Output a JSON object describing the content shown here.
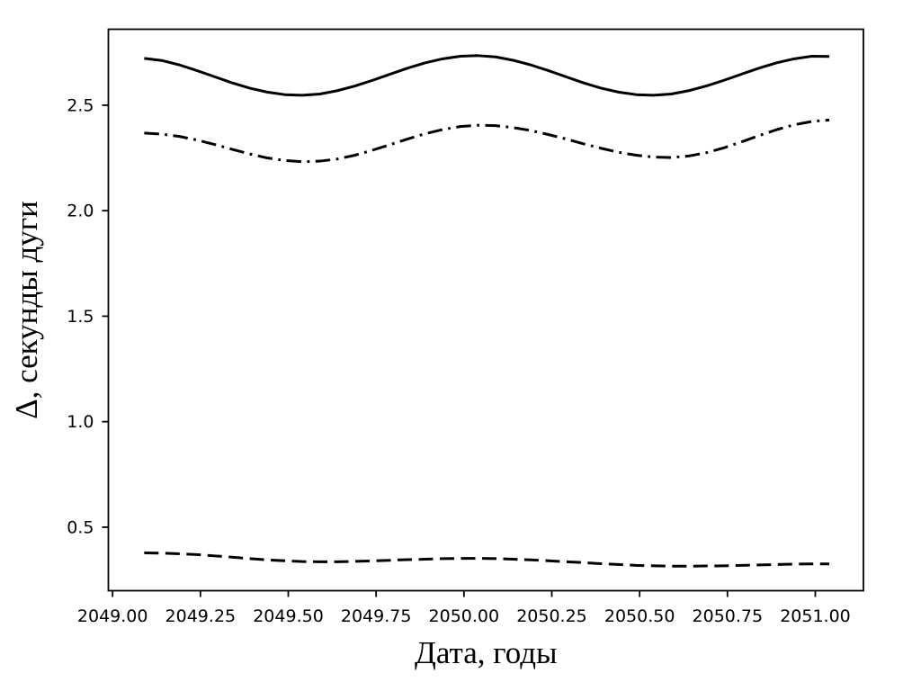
{
  "figure": {
    "background": "#ffffff",
    "foreground": "#000000"
  },
  "chart_data": {
    "type": "line",
    "title": "",
    "xlabel": "Дата, годы",
    "ylabel": "Δ, секунды дуги",
    "grid": false,
    "legend": "none",
    "xlim": [
      2048.988,
      2051.137
    ],
    "ylim": [
      0.199,
      2.86
    ],
    "x_ticks": [
      2049.0,
      2049.25,
      2049.5,
      2049.75,
      2050.0,
      2050.25,
      2050.5,
      2050.75,
      2051.0
    ],
    "x_tick_labels": [
      "2049.00",
      "2049.25",
      "2049.50",
      "2049.75",
      "2050.00",
      "2050.25",
      "2050.50",
      "2050.75",
      "2051.00"
    ],
    "y_ticks": [
      0.5,
      1.0,
      1.5,
      2.0,
      2.5
    ],
    "y_tick_labels": [
      "0.5",
      "1.0",
      "1.5",
      "2.0",
      "2.5"
    ],
    "x": [
      2049.09,
      2049.14,
      2049.19,
      2049.24,
      2049.29,
      2049.34,
      2049.39,
      2049.44,
      2049.49,
      2049.54,
      2049.59,
      2049.64,
      2049.69,
      2049.74,
      2049.79,
      2049.84,
      2049.89,
      2049.94,
      2049.99,
      2050.04,
      2050.09,
      2050.14,
      2050.19,
      2050.24,
      2050.29,
      2050.34,
      2050.39,
      2050.44,
      2050.49,
      2050.54,
      2050.59,
      2050.64,
      2050.69,
      2050.74,
      2050.79,
      2050.84,
      2050.89,
      2050.94,
      2050.99,
      2051.04
    ],
    "series": [
      {
        "name": "solid-line",
        "linestyle": "solid",
        "color": "#000000",
        "values": [
          2.722,
          2.712,
          2.691,
          2.664,
          2.635,
          2.606,
          2.581,
          2.562,
          2.55,
          2.547,
          2.553,
          2.569,
          2.591,
          2.618,
          2.647,
          2.676,
          2.701,
          2.72,
          2.732,
          2.735,
          2.729,
          2.713,
          2.691,
          2.664,
          2.635,
          2.606,
          2.581,
          2.562,
          2.55,
          2.547,
          2.553,
          2.569,
          2.591,
          2.618,
          2.647,
          2.676,
          2.701,
          2.72,
          2.732,
          2.731
        ]
      },
      {
        "name": "dash-dot-line",
        "linestyle": "dashdot",
        "color": "#000000",
        "values": [
          2.368,
          2.363,
          2.352,
          2.335,
          2.314,
          2.291,
          2.269,
          2.25,
          2.238,
          2.232,
          2.235,
          2.245,
          2.263,
          2.287,
          2.313,
          2.34,
          2.365,
          2.385,
          2.399,
          2.405,
          2.403,
          2.394,
          2.38,
          2.361,
          2.34,
          2.317,
          2.296,
          2.277,
          2.263,
          2.254,
          2.252,
          2.259,
          2.275,
          2.298,
          2.326,
          2.356,
          2.384,
          2.407,
          2.423,
          2.43
        ]
      },
      {
        "name": "dashed-line",
        "linestyle": "dashed",
        "color": "#000000",
        "values": [
          0.378,
          0.377,
          0.374,
          0.37,
          0.364,
          0.358,
          0.351,
          0.345,
          0.341,
          0.337,
          0.336,
          0.336,
          0.338,
          0.34,
          0.343,
          0.346,
          0.348,
          0.351,
          0.352,
          0.352,
          0.351,
          0.348,
          0.345,
          0.341,
          0.336,
          0.332,
          0.327,
          0.323,
          0.319,
          0.317,
          0.315,
          0.315,
          0.316,
          0.317,
          0.319,
          0.321,
          0.323,
          0.325,
          0.326,
          0.326
        ]
      }
    ]
  }
}
